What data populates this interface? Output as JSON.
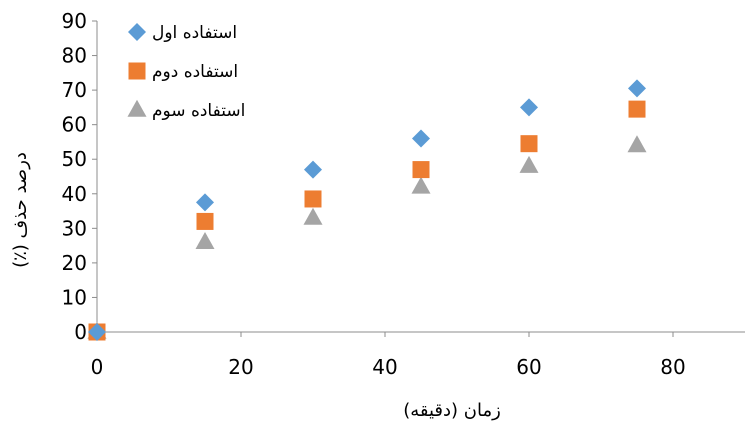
{
  "chart_data": {
    "type": "scatter",
    "title": "",
    "xlabel": "زمان (دقیقه)",
    "ylabel": "درصد حذف (٪)",
    "xlim": [
      0,
      90
    ],
    "ylim": [
      0,
      90
    ],
    "x_ticks": [
      0,
      20,
      40,
      60,
      80
    ],
    "y_ticks": [
      0,
      10,
      20,
      30,
      40,
      50,
      60,
      70,
      80,
      90
    ],
    "x_tick_labels": [
      "0",
      "20",
      "40",
      "60",
      "80"
    ],
    "y_tick_labels": [
      "0",
      "10",
      "20",
      "30",
      "40",
      "50",
      "60",
      "70",
      "80",
      "90"
    ],
    "grid": false,
    "legend_position": "top-left",
    "series": [
      {
        "name": "استفاده اول",
        "marker": "diamond",
        "color": "#5B9BD5",
        "x": [
          0,
          15,
          30,
          45,
          60,
          75
        ],
        "y": [
          0,
          37.5,
          47,
          56,
          65,
          70.5
        ]
      },
      {
        "name": "استفاده دوم",
        "marker": "square",
        "color": "#ED7D31",
        "x": [
          0,
          15,
          30,
          45,
          60,
          75
        ],
        "y": [
          0,
          32,
          38.5,
          47,
          54.5,
          64.5
        ]
      },
      {
        "name": "استفاده سوم",
        "marker": "triangle",
        "color": "#A5A5A5",
        "x": [
          0,
          15,
          30,
          45,
          60,
          75
        ],
        "y": [
          0,
          26,
          33,
          42,
          48,
          54
        ]
      }
    ]
  }
}
